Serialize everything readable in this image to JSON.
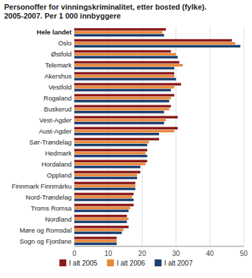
{
  "chart_data": {
    "type": "bar",
    "orientation": "horizontal",
    "title": "Personoffer for vinningskriminalitet, etter bosted (fylke).\n2005-2007. Per 1 000 innbyggere",
    "categories": [
      "Hele landet",
      "Oslo",
      "Østfold",
      "Telemark",
      "Akershus",
      "Vestfold",
      "Rogaland",
      "Buskerud",
      "Vest-Agder",
      "Aust-Agder",
      "Sør-Trøndelag",
      "Hedmark",
      "Hordaland",
      "Oppland",
      "Finnmark Finnmárku",
      "Nord-Trøndelag",
      "Troms Romsa",
      "Nordland",
      "Møre og Romsdal",
      "Sogn og Fjordane"
    ],
    "series": [
      {
        "name": "I alt 2005",
        "color": "#8B1A1A",
        "values": [
          27.0,
          46.5,
          28.5,
          31.0,
          29.5,
          31.5,
          29.5,
          28.5,
          30.5,
          30.5,
          25.0,
          21.5,
          21.5,
          19.5,
          18.0,
          17.5,
          17.5,
          15.5,
          16.0,
          12.5
        ]
      },
      {
        "name": "I alt 2006",
        "color": "#E8883A",
        "values": [
          26.0,
          47.5,
          30.0,
          32.0,
          29.5,
          29.5,
          28.5,
          28.0,
          27.0,
          29.5,
          22.0,
          21.0,
          21.0,
          18.5,
          18.0,
          17.0,
          16.5,
          16.0,
          14.5,
          12.5
        ]
      },
      {
        "name": "I alt 2007",
        "color": "#1C3F6E",
        "values": [
          26.5,
          49.0,
          30.5,
          29.5,
          30.0,
          28.5,
          28.0,
          26.5,
          26.5,
          25.0,
          21.5,
          21.5,
          19.5,
          18.5,
          18.0,
          17.5,
          16.0,
          15.5,
          14.0,
          12.5
        ]
      }
    ],
    "xlim": [
      0,
      50
    ],
    "xticks": [
      0,
      10,
      20,
      30,
      40,
      50
    ],
    "grid": true,
    "legend": "bottom"
  }
}
